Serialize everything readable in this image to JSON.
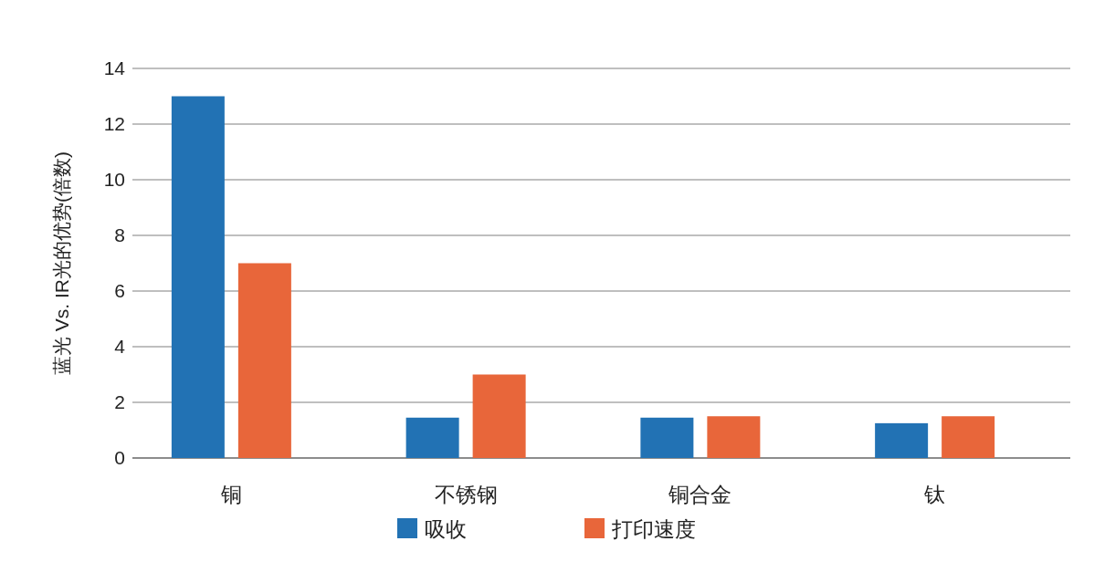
{
  "chart_data": {
    "type": "bar",
    "ylabel": "蓝光 Vs. IR光的优势(倍数)",
    "categories": [
      "铜",
      "不锈钢",
      "铜合金",
      "钛"
    ],
    "series": [
      {
        "name": "吸收",
        "color": "#2272b4",
        "values": [
          13,
          1.45,
          1.45,
          1.25
        ]
      },
      {
        "name": "打印速度",
        "color": "#e8663a",
        "values": [
          7,
          3,
          1.5,
          1.5
        ]
      }
    ],
    "ylim": [
      0,
      14
    ],
    "yticks": [
      0,
      2,
      4,
      6,
      8,
      10,
      12,
      14
    ],
    "grid": "y",
    "legend": "bottom"
  }
}
